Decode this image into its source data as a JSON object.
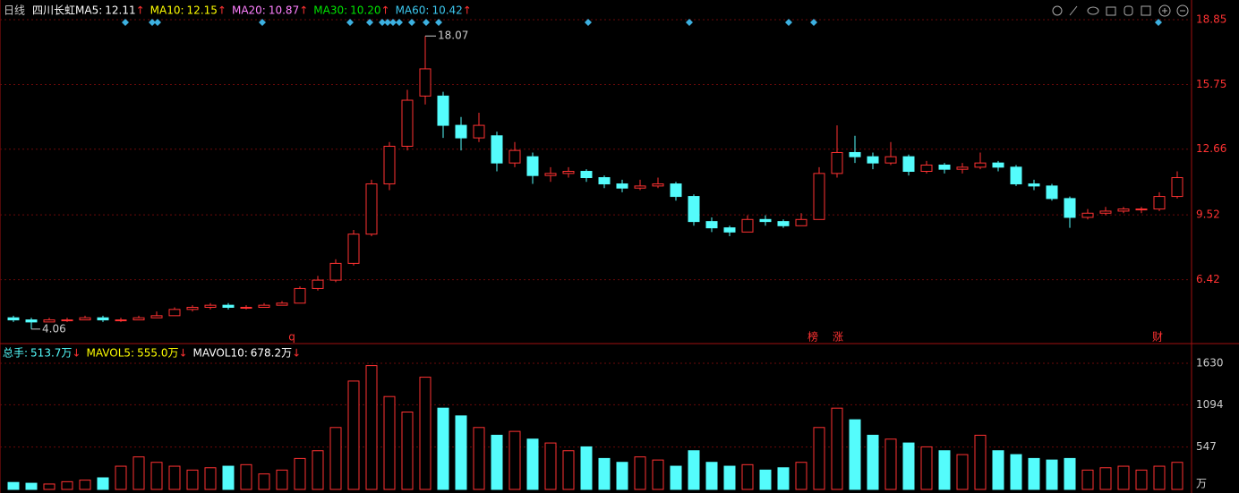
{
  "header": {
    "period": "日线",
    "stock": "四川长虹"
  },
  "indicators": [
    {
      "name": "MA5:",
      "value": 12.11,
      "trend": "↑",
      "color": "#ffffff"
    },
    {
      "name": "MA10:",
      "value": 12.15,
      "trend": "↑",
      "color": "#ffff00"
    },
    {
      "name": "MA20:",
      "value": 10.87,
      "trend": "↑",
      "color": "#ff80ff"
    },
    {
      "name": "MA30:",
      "value": {
        "value": 10.2,
        "label": "10.20"
      },
      "trend": "↑",
      "color": "#00e600"
    },
    {
      "name": "MA60:",
      "value": 10.42,
      "trend": "↑",
      "color": "#3cc8f0"
    }
  ],
  "chart_data": [
    {
      "type": "candlestick",
      "ylim": [
        3.41,
        18.85
      ],
      "yticks": [
        6.42,
        9.52,
        12.66,
        15.75,
        18.85
      ],
      "up_color": "#ff3232",
      "down_color": "#54fcfc",
      "max_marker": 18.07,
      "min_marker": 4.06,
      "events": [
        "q",
        "榜",
        "涨",
        "财"
      ],
      "open": [
        4.6,
        4.5,
        4.4,
        4.5,
        4.5,
        4.6,
        4.5,
        4.5,
        4.6,
        4.7,
        5.0,
        5.1,
        5.2,
        5.1,
        5.1,
        5.2,
        5.3,
        6.0,
        6.4,
        7.2,
        8.6,
        11.0,
        12.8,
        15.2,
        15.2,
        13.8,
        13.2,
        13.3,
        12.0,
        12.3,
        11.4,
        11.5,
        11.6,
        11.3,
        11.0,
        10.8,
        10.9,
        11.0,
        10.4,
        9.2,
        8.9,
        8.7,
        9.3,
        9.2,
        9.0,
        9.3,
        11.5,
        12.5,
        12.3,
        12.0,
        12.3,
        11.6,
        11.9,
        11.7,
        11.8,
        12.0,
        11.8,
        11.0,
        10.9,
        10.3,
        9.4,
        9.6,
        9.7,
        9.8,
        9.8,
        10.4
      ],
      "high": [
        4.7,
        4.6,
        4.6,
        4.6,
        4.7,
        4.7,
        4.6,
        4.7,
        4.9,
        5.1,
        5.2,
        5.3,
        5.3,
        5.2,
        5.3,
        5.4,
        6.1,
        6.6,
        7.4,
        8.8,
        11.2,
        13.0,
        15.5,
        18.07,
        15.4,
        14.2,
        14.4,
        13.5,
        13.0,
        12.5,
        11.8,
        11.8,
        11.7,
        11.4,
        11.2,
        11.2,
        11.3,
        11.1,
        10.5,
        9.4,
        9.0,
        9.5,
        9.5,
        9.3,
        9.6,
        11.8,
        13.8,
        13.3,
        12.5,
        13.0,
        12.4,
        12.1,
        12.0,
        12.0,
        12.5,
        12.1,
        11.9,
        11.2,
        11.0,
        10.4,
        9.8,
        9.9,
        9.9,
        9.9,
        10.6,
        11.6
      ],
      "low": [
        4.4,
        4.06,
        4.4,
        4.4,
        4.5,
        4.4,
        4.4,
        4.5,
        4.6,
        4.7,
        4.9,
        5.0,
        5.0,
        5.0,
        5.1,
        5.2,
        5.3,
        5.9,
        6.3,
        7.1,
        8.5,
        10.7,
        12.6,
        14.8,
        13.2,
        12.6,
        13.0,
        11.6,
        11.8,
        11.0,
        11.1,
        11.3,
        11.1,
        10.8,
        10.6,
        10.7,
        10.8,
        10.2,
        9.0,
        8.7,
        8.5,
        8.7,
        9.0,
        8.9,
        9.0,
        9.3,
        11.3,
        12.0,
        11.7,
        11.9,
        11.4,
        11.5,
        11.5,
        11.5,
        11.7,
        11.6,
        10.9,
        10.7,
        10.2,
        8.9,
        9.3,
        9.5,
        9.6,
        9.6,
        9.7,
        10.3
      ],
      "close": [
        4.5,
        4.4,
        4.5,
        4.5,
        4.6,
        4.5,
        4.5,
        4.6,
        4.7,
        5.0,
        5.1,
        5.2,
        5.1,
        5.1,
        5.2,
        5.3,
        6.0,
        6.4,
        7.2,
        8.6,
        11.0,
        12.8,
        15.0,
        16.5,
        13.8,
        13.2,
        13.8,
        12.0,
        12.6,
        11.4,
        11.5,
        11.6,
        11.3,
        11.0,
        10.8,
        10.9,
        11.0,
        10.4,
        9.2,
        8.9,
        8.7,
        9.3,
        9.2,
        9.0,
        9.3,
        11.5,
        12.5,
        12.3,
        12.0,
        12.3,
        11.6,
        11.9,
        11.7,
        11.8,
        12.0,
        11.8,
        11.0,
        10.9,
        10.3,
        9.4,
        9.6,
        9.7,
        9.8,
        9.8,
        10.4,
        11.3
      ]
    },
    {
      "type": "bar",
      "unit": "万",
      "ylim": [
        0,
        1630
      ],
      "yticks": [
        547,
        1094,
        1630
      ],
      "indicators": [
        {
          "name": "总手:",
          "value": 513.7,
          "trend": "↓",
          "color": "#54fcfc"
        },
        {
          "name": "MAVOL5:",
          "value": {
            "value": 555,
            "label": "555.0"
          },
          "trend": "↓",
          "color": "#ffff00"
        },
        {
          "name": "MAVOL10:",
          "value": 678.2,
          "trend": "↓",
          "color": "#ffffff"
        }
      ],
      "values": [
        90,
        80,
        70,
        100,
        120,
        150,
        300,
        420,
        350,
        300,
        250,
        280,
        300,
        320,
        200,
        250,
        400,
        500,
        800,
        1400,
        1600,
        1200,
        1000,
        1450,
        1050,
        950,
        800,
        700,
        750,
        650,
        600,
        500,
        550,
        400,
        350,
        420,
        380,
        300,
        500,
        350,
        300,
        320,
        250,
        280,
        350,
        800,
        1050,
        900,
        700,
        650,
        600,
        550,
        500,
        450,
        700,
        500,
        450,
        400,
        380,
        400,
        250,
        280,
        300,
        250,
        300,
        350
      ]
    }
  ]
}
